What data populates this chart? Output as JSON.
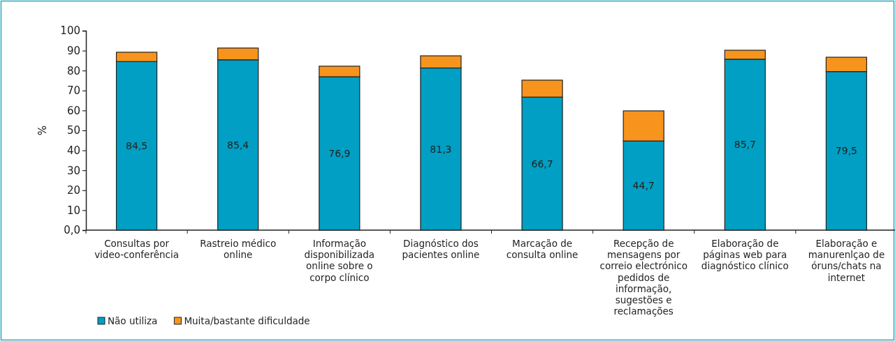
{
  "chart_data": {
    "type": "bar",
    "stacked": true,
    "ylabel": "%",
    "categories": [
      "Consultas por video-conferência",
      "Rastreio médico online",
      "Informação disponibilizada online sobre o corpo clínico",
      "Diagnóstico dos pacientes online",
      "Marcação de consulta online",
      "Recepção de mensagens por correio electrónico pedidos de informação, sugestões e reclamações",
      "Elaboração de páginas web para diagnóstico clínico",
      "Elaboração e manurenlçao de óruns/chats na internet"
    ],
    "series": [
      {
        "name": "Não utiliza",
        "color": "#009fc3",
        "values": [
          84.5,
          85.4,
          76.9,
          81.3,
          66.7,
          44.7,
          85.7,
          79.5
        ],
        "value_labels": [
          "84,5",
          "85,4",
          "76,9",
          "81,3",
          "66,7",
          "44,7",
          "85,7",
          "79,5"
        ]
      },
      {
        "name": "Muita/bastante dificuldade",
        "color": "#f7941d",
        "values": [
          4.7,
          5.9,
          5.3,
          6.1,
          8.5,
          15.1,
          4.5,
          7.2
        ]
      }
    ],
    "ylim": [
      0,
      100
    ],
    "yticks": [
      {
        "value": 0,
        "label": "0,0"
      },
      10,
      20,
      30,
      40,
      50,
      60,
      70,
      80,
      90,
      100
    ],
    "grid": false,
    "legend": "bottom left"
  }
}
